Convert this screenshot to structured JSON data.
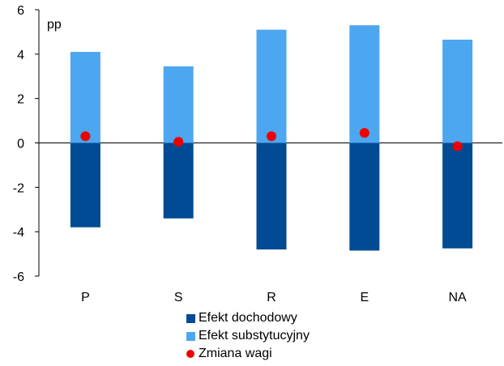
{
  "chart_data": {
    "type": "bar",
    "stacked": true,
    "unit_label": "pp",
    "categories": [
      "P",
      "S",
      "R",
      "E",
      "NA"
    ],
    "series": [
      {
        "name": "Efekt dochodowy",
        "kind": "bar",
        "color": "#004b93",
        "values": [
          -3.8,
          -3.4,
          -4.8,
          -4.85,
          -4.75
        ]
      },
      {
        "name": "Efekt substytucyjny",
        "kind": "bar",
        "color": "#4da6f0",
        "values": [
          4.1,
          3.45,
          5.1,
          5.3,
          4.65
        ]
      },
      {
        "name": "Zmiana wagi",
        "kind": "scatter",
        "color": "#ee0000",
        "values": [
          0.3,
          0.05,
          0.3,
          0.45,
          -0.15
        ]
      }
    ],
    "ylim": [
      -6,
      6
    ],
    "yticks": [
      "-6",
      "-4",
      "-2",
      "0",
      "2",
      "4",
      "6"
    ],
    "grid": false,
    "legend_position": "bottom"
  }
}
